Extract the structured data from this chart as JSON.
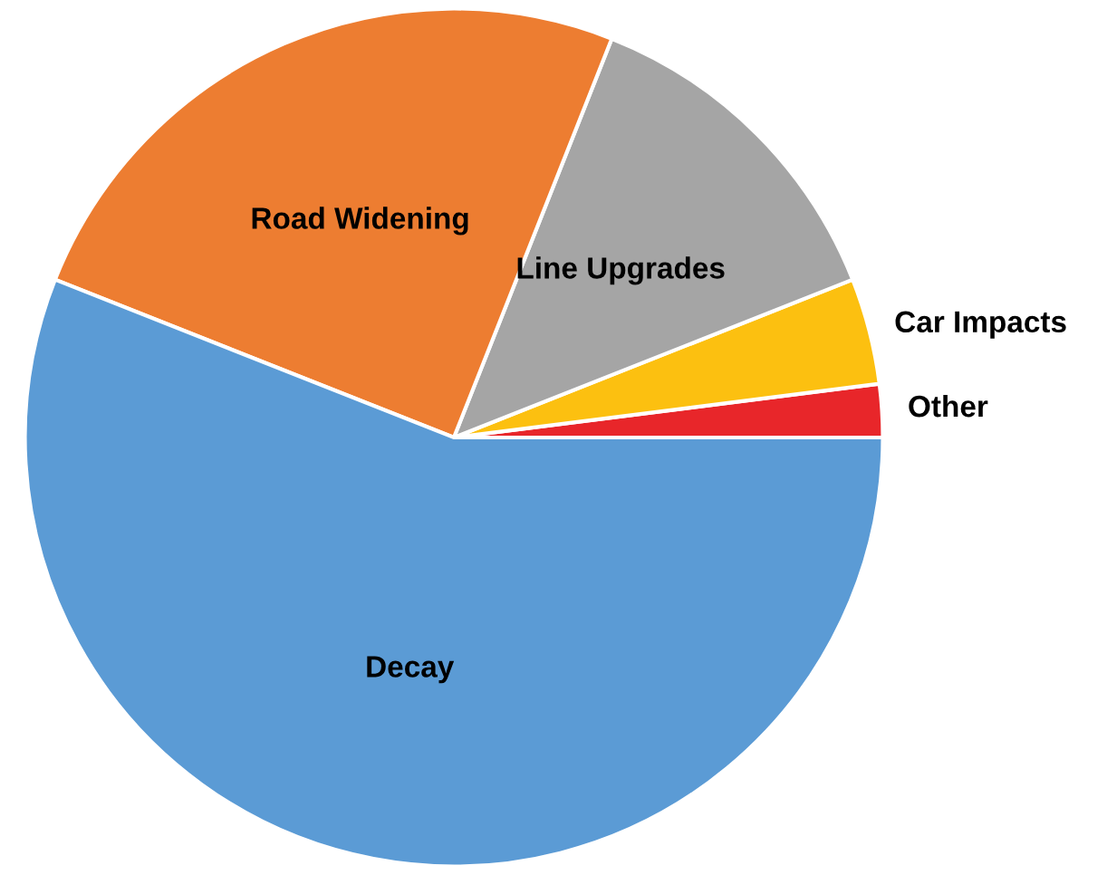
{
  "chart_data": {
    "type": "pie",
    "categories": [
      "Other",
      "Car Impacts",
      "Line Upgrades",
      "Road Widening",
      "Decay"
    ],
    "values": [
      2,
      4,
      13,
      25,
      56
    ],
    "colors": [
      "#e8262a",
      "#fcc010",
      "#a5a5a5",
      "#ed7d31",
      "#5b9bd5"
    ],
    "legend": false
  }
}
